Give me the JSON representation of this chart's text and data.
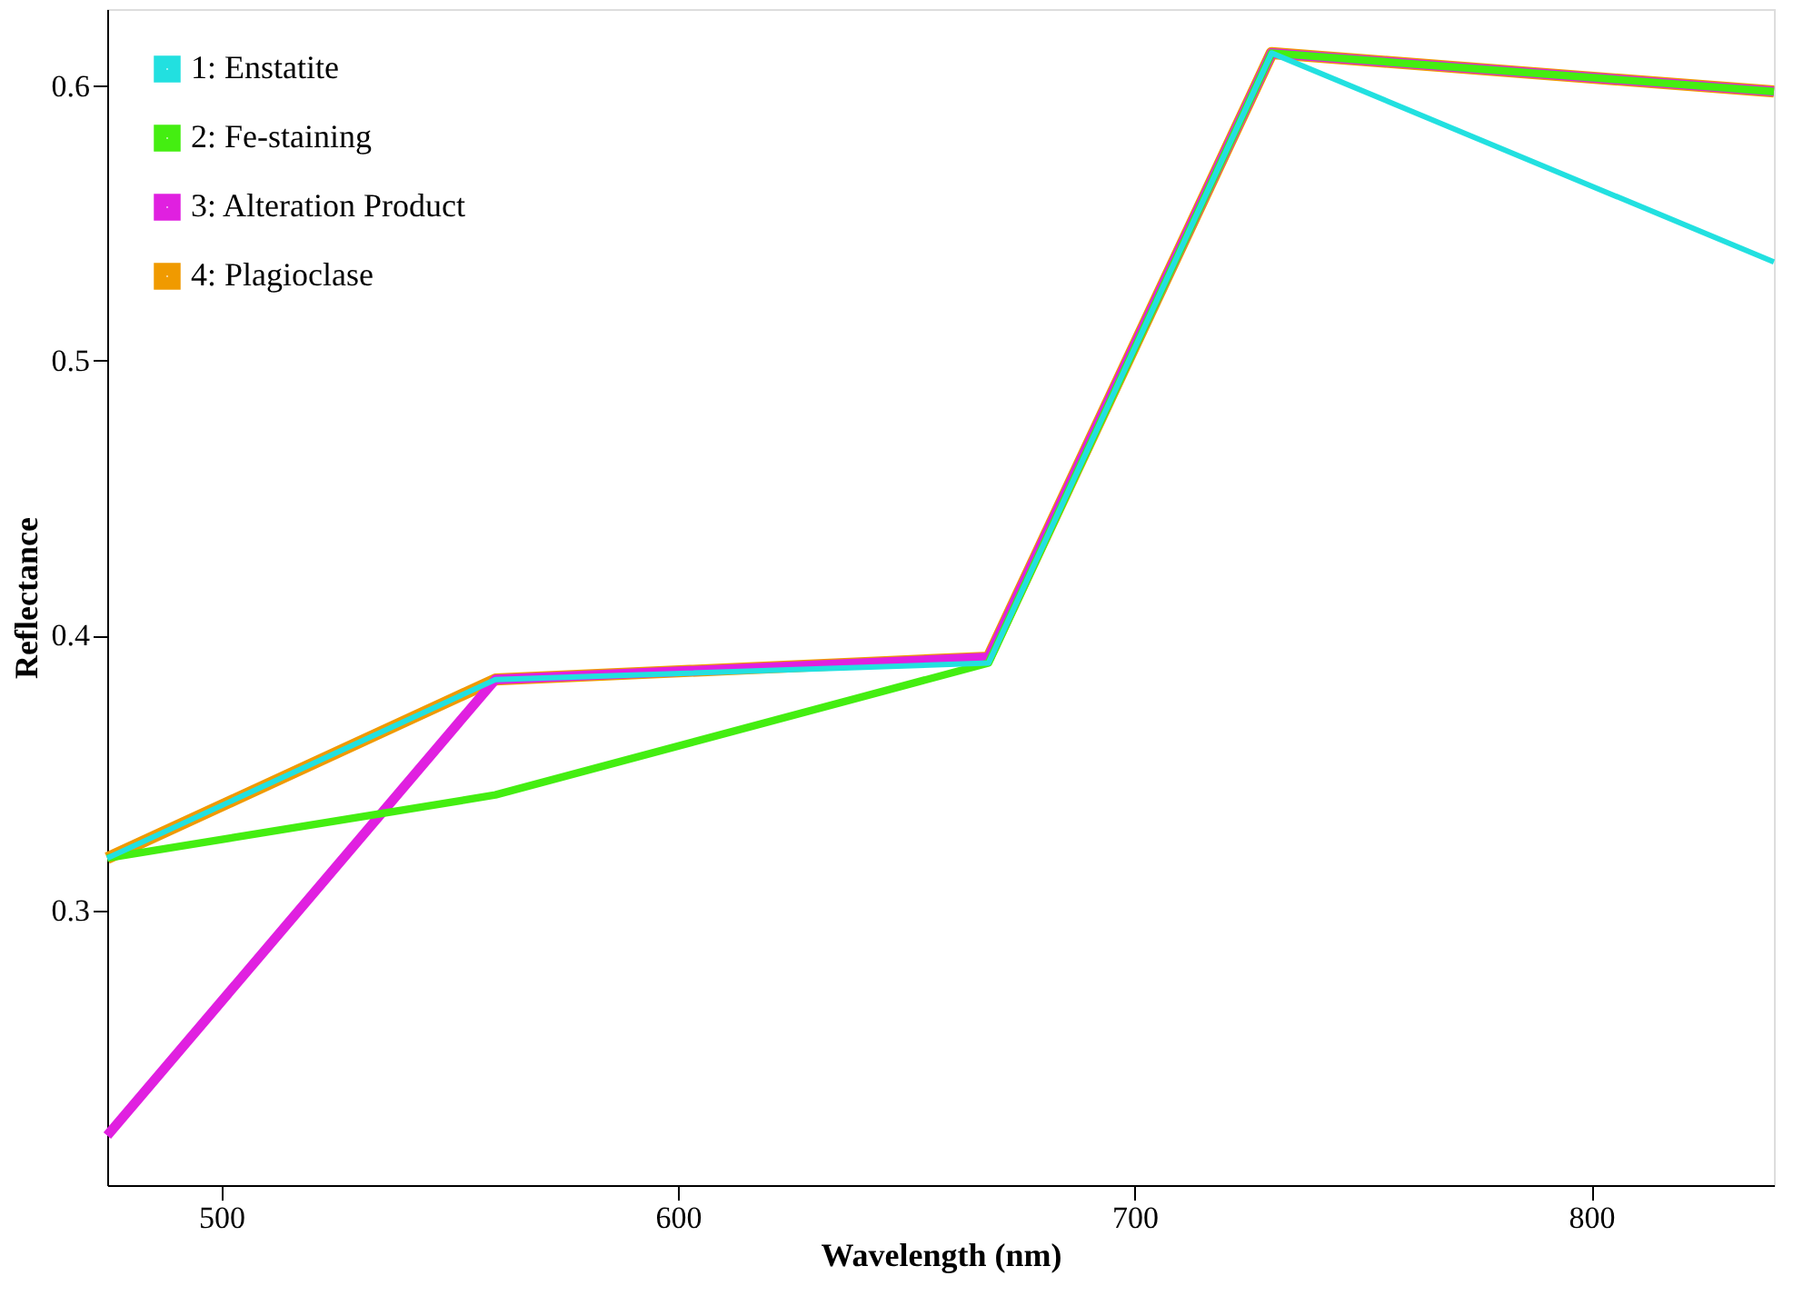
{
  "chart_data": {
    "type": "line",
    "xlabel": "Wavelength (nm)",
    "ylabel": "Reflectance",
    "xlim": [
      475,
      840
    ],
    "xticks": [
      500,
      600,
      700,
      800
    ],
    "ylim": [
      0.2,
      0.628
    ],
    "yticks": [
      0.3,
      0.4,
      0.5,
      0.6
    ],
    "grid": false,
    "legend": "top left",
    "marker": "none",
    "line_style": "solid",
    "series": [
      {
        "name": "1: Enstatite",
        "color": "#22e0e0",
        "x": [
          475,
          560,
          668,
          730,
          840
        ],
        "values": [
          0.319,
          0.384,
          0.39,
          0.612,
          0.536
        ]
      },
      {
        "name": "2: Fe-staining",
        "color": "#44ee11",
        "x": [
          475,
          560,
          668,
          730,
          840
        ],
        "values": [
          0.319,
          0.342,
          0.39,
          0.612,
          0.598
        ]
      },
      {
        "name": "3: Alteration Product",
        "color": "#e020e0",
        "x": [
          475,
          560,
          668,
          730,
          840
        ],
        "values": [
          0.218,
          0.384,
          0.392,
          0.612,
          0.598
        ]
      },
      {
        "name": "4: Plagioclase",
        "color": "#f09a00",
        "x": [
          475,
          560,
          668,
          730,
          840
        ],
        "values": [
          0.319,
          0.384,
          0.392,
          0.612,
          0.598
        ]
      }
    ]
  }
}
